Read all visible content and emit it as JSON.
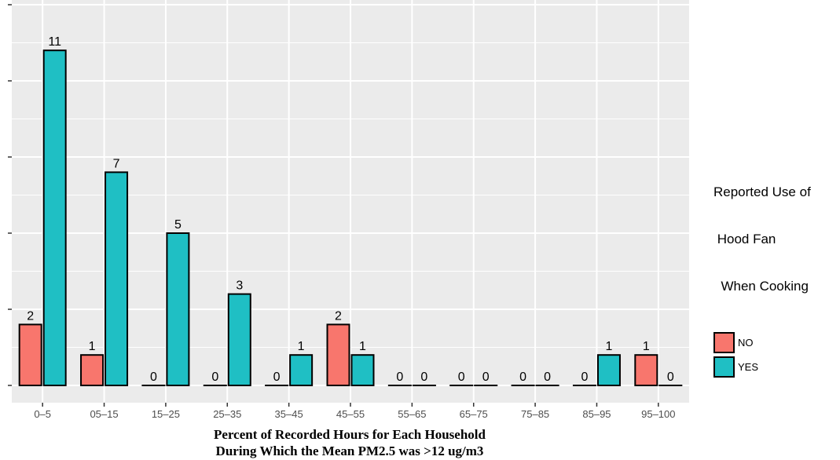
{
  "chart_data": {
    "type": "bar",
    "categories": [
      "0–5",
      "05–15",
      "15–25",
      "25–35",
      "35–45",
      "45–55",
      "55–65",
      "65–75",
      "75–85",
      "85–95",
      "95–100"
    ],
    "series": [
      {
        "name": "NO",
        "color": "#f8766d",
        "values": [
          2,
          1,
          0,
          0,
          0,
          2,
          0,
          0,
          0,
          0,
          1
        ]
      },
      {
        "name": "YES",
        "color": "#1fbfc4",
        "values": [
          11,
          7,
          5,
          3,
          1,
          1,
          0,
          0,
          0,
          1,
          0
        ]
      }
    ],
    "xlabel_lines": [
      "Percent of Recorded Hours for Each Household",
      "During Which the Mean PM2.5 was >12 ug/m3"
    ],
    "ylabel": "",
    "legend_title_lines": [
      "Reported Use of",
      " Hood Fan",
      "  When Cooking"
    ],
    "legend_position": "right",
    "grid": true,
    "panel_background": "#ebebeb"
  }
}
